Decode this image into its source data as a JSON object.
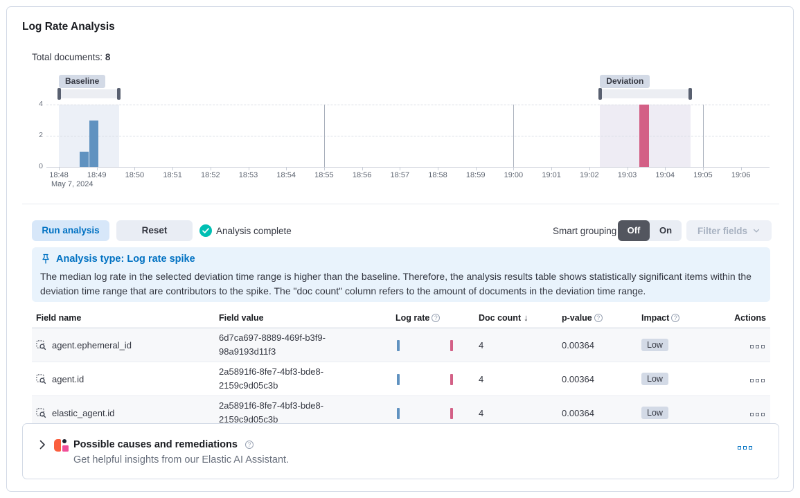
{
  "page": {
    "title": "Log Rate Analysis",
    "total_documents_label": "Total documents:",
    "total_documents_value": "8"
  },
  "chart_data": {
    "type": "bar",
    "title": "Document count histogram with baseline and deviation windows",
    "x_axis": {
      "ticks": [
        "18:48",
        "18:49",
        "18:50",
        "18:51",
        "18:52",
        "18:53",
        "18:54",
        "18:55",
        "18:56",
        "18:57",
        "18:58",
        "18:59",
        "19:00",
        "19:01",
        "19:02",
        "19:03",
        "19:04",
        "19:05",
        "19:06"
      ],
      "date_label": "May 7, 2024"
    },
    "y_axis": {
      "ticks": [
        0,
        2,
        4
      ],
      "max": 4
    },
    "bars": [
      {
        "time": "18:48:33",
        "count": 1,
        "series": "baseline",
        "color": "#6092c0"
      },
      {
        "time": "18:48:48",
        "count": 3,
        "series": "baseline",
        "color": "#6092c0"
      },
      {
        "time": "19:03:19",
        "count": 4,
        "series": "deviation",
        "color": "#d36086"
      }
    ],
    "windows": {
      "baseline": {
        "label": "Baseline",
        "from": "18:48:00",
        "to": "18:49:35"
      },
      "deviation": {
        "label": "Deviation",
        "from": "19:02:17",
        "to": "19:04:40"
      }
    },
    "vertical_gridlines": [
      "18:55",
      "19:00",
      "19:05"
    ],
    "legend": "off",
    "grid": "dashed-horizontal"
  },
  "toolbar": {
    "run_analysis_label": "Run analysis",
    "reset_label": "Reset",
    "status_text": "Analysis complete",
    "smart_grouping_label": "Smart grouping",
    "toggle_off": "Off",
    "toggle_on": "On",
    "toggle_selected": "Off",
    "filter_fields_label": "Filter fields"
  },
  "callout": {
    "title": "Analysis type: Log rate spike",
    "body": "The median log rate in the selected deviation time range is higher than the baseline. Therefore, the analysis results table shows statistically significant items within the deviation time range that are contributors to the spike. The \"doc count\" column refers to the amount of documents in the deviation time range."
  },
  "table": {
    "headers": {
      "field_name": "Field name",
      "field_value": "Field value",
      "log_rate": "Log rate",
      "doc_count": "Doc count",
      "p_value": "p-value",
      "impact": "Impact",
      "actions": "Actions"
    },
    "sorted_by": "Doc count descending",
    "rows": [
      {
        "field_name": "agent.ephemeral_id",
        "field_value": "6d7ca697-8889-469f-b3f9-98a9193d11f3",
        "doc_count": "4",
        "p_value": "0.00364",
        "impact": "Low"
      },
      {
        "field_name": "agent.id",
        "field_value": "2a5891f6-8fe7-4bf3-bde8-2159c9d05c3b",
        "doc_count": "4",
        "p_value": "0.00364",
        "impact": "Low"
      },
      {
        "field_name": "elastic_agent.id",
        "field_value": "2a5891f6-8fe7-4bf3-bde8-2159c9d05c3b",
        "doc_count": "4",
        "p_value": "0.00364",
        "impact": "Low"
      }
    ]
  },
  "footer_panel": {
    "title": "Possible causes and remediations",
    "subtitle": "Get helpful insights from our Elastic AI Assistant."
  },
  "colors": {
    "accent_blue": "#0071c2",
    "success_teal": "#00bfb3",
    "bar_blue": "#6092c0",
    "bar_pink": "#d36086",
    "badge_gray": "#d3dae6",
    "callout_bg": "#e9f3fc",
    "toggle_selected_bg": "#53565f"
  }
}
